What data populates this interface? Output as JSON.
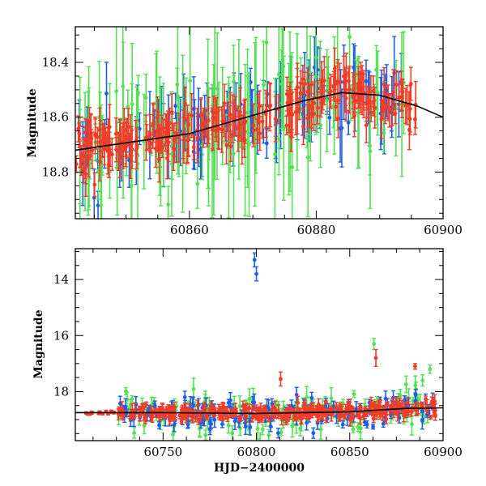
{
  "colors": {
    "blue": "#1f5fe6",
    "green": "#55e055",
    "red": "#f03c28",
    "model": "#000000"
  },
  "chart_data": [
    {
      "type": "scatter",
      "title": "",
      "xlabel": "",
      "ylabel": "Magnitude",
      "xlim": [
        60842,
        60900
      ],
      "ylim": [
        18.97,
        18.27
      ],
      "y_inverted": true,
      "grid": false,
      "xticks": [
        "60860",
        "60880",
        "60900"
      ],
      "yticks": [
        "18.4",
        "18.6",
        "18.8"
      ],
      "xtick_values": [
        60860,
        60880,
        60900
      ],
      "ytick_values": [
        18.4,
        18.6,
        18.8
      ],
      "model_curve": {
        "x": [
          60842,
          60848,
          60854,
          60860,
          60866,
          60872,
          60878,
          60884,
          60890,
          60896,
          60900
        ],
        "y": [
          18.72,
          18.7,
          18.68,
          18.66,
          18.62,
          18.58,
          18.54,
          18.51,
          18.52,
          18.56,
          18.6
        ]
      },
      "series": [
        {
          "color": "blue",
          "seed": 11,
          "count": 110,
          "x_range": [
            60842,
            60894
          ],
          "scatter": 0.06,
          "err": [
            0.04,
            0.16
          ]
        },
        {
          "color": "green",
          "seed": 23,
          "count": 120,
          "x_range": [
            60842,
            60894
          ],
          "scatter": 0.1,
          "err": [
            0.05,
            0.3
          ]
        },
        {
          "color": "red",
          "seed": 37,
          "count": 260,
          "x_range": [
            60842,
            60896
          ],
          "scatter": 0.045,
          "err": [
            0.03,
            0.09
          ]
        }
      ]
    },
    {
      "type": "scatter",
      "title": "",
      "xlabel": "HJD−2400000",
      "ylabel": "Magnitude",
      "xlim": [
        60703,
        60900
      ],
      "ylim": [
        19.75,
        12.9
      ],
      "y_inverted": true,
      "grid": false,
      "xticks": [
        "60750",
        "60800",
        "60850",
        "60900"
      ],
      "yticks": [
        "14",
        "16",
        "18"
      ],
      "xtick_values": [
        60750,
        60800,
        60850,
        60900
      ],
      "ytick_values": [
        14,
        16,
        18
      ],
      "model_curve": {
        "x": [
          60703,
          60750,
          60800,
          60850,
          60880,
          60900
        ],
        "y": [
          18.75,
          18.75,
          18.78,
          18.72,
          18.6,
          18.58
        ]
      },
      "outliers": [
        {
          "color": "blue",
          "x": 60799,
          "y": 13.3,
          "err": 0.25
        },
        {
          "color": "blue",
          "x": 60800,
          "y": 13.8,
          "err": 0.25
        },
        {
          "color": "green",
          "x": 60863,
          "y": 16.3,
          "err": 0.2
        },
        {
          "color": "red",
          "x": 60864,
          "y": 16.8,
          "err": 0.3
        },
        {
          "color": "red",
          "x": 60885,
          "y": 17.1,
          "err": 0.1
        },
        {
          "color": "green",
          "x": 60893,
          "y": 17.2,
          "err": 0.15
        },
        {
          "color": "red",
          "x": 60813,
          "y": 17.55,
          "err": 0.25
        },
        {
          "color": "green",
          "x": 60889,
          "y": 17.6,
          "err": 0.2
        }
      ],
      "series": [
        {
          "color": "red",
          "seed": 5,
          "count": 14,
          "x_range": [
            60708,
            60724
          ],
          "scatter": 0.03,
          "err": [
            0.03,
            0.06
          ]
        },
        {
          "color": "green",
          "seed": 29,
          "count": 140,
          "x_range": [
            60725,
            60896
          ],
          "scatter": 0.35,
          "err": [
            0.1,
            0.4
          ]
        },
        {
          "color": "blue",
          "seed": 41,
          "count": 150,
          "x_range": [
            60725,
            60896
          ],
          "scatter": 0.28,
          "err": [
            0.08,
            0.3
          ]
        },
        {
          "color": "red",
          "seed": 53,
          "count": 320,
          "x_range": [
            60725,
            60896
          ],
          "scatter": 0.14,
          "err": [
            0.05,
            0.25
          ]
        }
      ]
    }
  ]
}
